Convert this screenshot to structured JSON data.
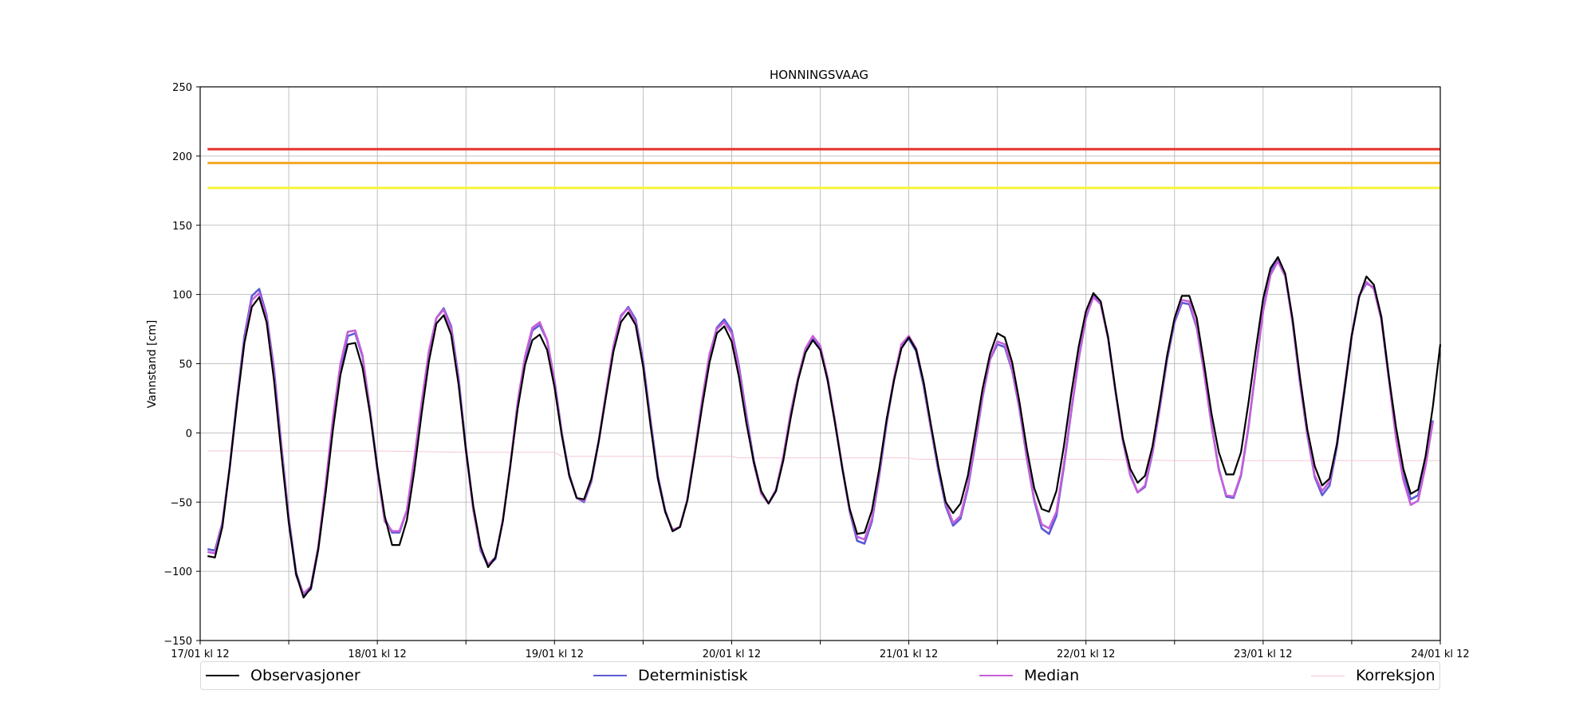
{
  "chart_data": {
    "type": "line",
    "title": "HONNINGSVAAG",
    "xlabel": "",
    "ylabel": "Vannstand [cm]",
    "ylim": [
      -150,
      250
    ],
    "yticks": [
      -150,
      -100,
      -50,
      0,
      50,
      100,
      150,
      200,
      250
    ],
    "xlim_hours": [
      0,
      168
    ],
    "x_tick_labels": [
      "17/01 kl 12",
      "18/01 kl 12",
      "19/01 kl 12",
      "20/01 kl 12",
      "21/01 kl 12",
      "22/01 kl 12",
      "23/01 kl 12",
      "24/01 kl 12"
    ],
    "x_tick_major_hours": [
      0,
      24,
      48,
      72,
      96,
      120,
      144,
      168
    ],
    "x_tick_minor_hours": [
      12,
      36,
      60,
      84,
      108,
      132,
      156
    ],
    "grid": true,
    "legend_position": "bottom",
    "threshold_lines": [
      {
        "value": 205,
        "color": "#e8302a"
      },
      {
        "value": 195,
        "color": "#f5a623"
      },
      {
        "value": 177,
        "color": "#f5f53a"
      }
    ],
    "series": [
      {
        "name": "Observasjoner",
        "color": "#000000",
        "x": [
          1,
          2,
          3,
          4,
          5,
          6,
          7,
          8,
          9,
          10,
          11,
          12,
          13,
          14,
          15,
          16,
          17,
          18,
          19,
          20,
          21,
          22,
          23,
          24,
          25,
          26,
          27,
          28,
          29,
          30,
          31,
          32,
          33,
          34,
          35,
          36,
          37,
          38,
          39,
          40,
          41,
          42,
          43,
          44,
          45,
          46,
          47,
          48,
          49,
          50,
          51,
          52,
          53,
          54,
          55,
          56,
          57,
          58,
          59,
          60,
          61,
          62,
          63,
          64,
          65,
          66,
          67,
          68,
          69,
          70,
          71,
          72,
          73,
          74,
          75,
          76,
          77,
          78,
          79,
          80,
          81,
          82,
          83,
          84,
          85,
          86,
          87,
          88,
          89,
          90,
          91,
          92,
          93,
          94,
          95,
          96,
          97,
          98,
          99,
          100,
          101,
          102,
          103,
          104,
          105,
          106,
          107,
          108,
          109,
          110,
          111,
          112,
          113,
          114,
          115,
          116,
          117,
          118,
          119,
          120,
          121,
          122,
          123,
          124,
          125,
          126,
          127,
          128,
          129,
          130,
          131,
          132,
          133,
          134,
          135,
          136,
          137,
          138,
          139,
          140,
          141,
          142,
          143,
          144,
          145,
          146,
          147,
          148,
          149,
          150,
          151,
          152,
          153,
          154,
          155,
          156,
          157,
          158,
          159,
          160,
          161,
          162,
          163,
          164,
          165,
          166,
          167,
          168
        ],
        "values": [
          -89,
          -90,
          -68,
          -25,
          22,
          65,
          91,
          98,
          80,
          38,
          -15,
          -65,
          -102,
          -119,
          -112,
          -84,
          -43,
          3,
          42,
          64,
          65,
          47,
          14,
          -25,
          -60,
          -81,
          -81,
          -63,
          -28,
          14,
          52,
          79,
          85,
          71,
          35,
          -12,
          -53,
          -82,
          -97,
          -90,
          -64,
          -24,
          17,
          49,
          67,
          71,
          60,
          33,
          -2,
          -31,
          -47,
          -48,
          -33,
          -6,
          27,
          59,
          80,
          87,
          78,
          48,
          6,
          -33,
          -57,
          -71,
          -68,
          -49,
          -16,
          19,
          51,
          72,
          77,
          66,
          40,
          7,
          -21,
          -42,
          -51,
          -42,
          -20,
          11,
          38,
          58,
          67,
          60,
          38,
          7,
          -26,
          -55,
          -73,
          -72,
          -56,
          -26,
          10,
          38,
          61,
          69,
          60,
          37,
          6,
          -24,
          -50,
          -58,
          -51,
          -31,
          0,
          32,
          57,
          72,
          69,
          51,
          22,
          -12,
          -40,
          -55,
          -57,
          -42,
          -10,
          28,
          62,
          88,
          101,
          95,
          69,
          31,
          -4,
          -26,
          -36,
          -31,
          -10,
          22,
          56,
          83,
          99,
          99,
          83,
          50,
          14,
          -14,
          -30,
          -30,
          -14,
          21,
          60,
          97,
          119,
          127,
          115,
          82,
          40,
          2,
          -24,
          -38,
          -33,
          -8,
          30,
          70,
          98,
          113,
          107,
          84,
          42,
          4,
          -26,
          -44,
          -41,
          -17,
          19,
          64
        ]
      },
      {
        "name": "Deterministisk",
        "color": "#5b5bd6",
        "x": [
          1,
          2,
          3,
          4,
          5,
          6,
          7,
          8,
          9,
          10,
          11,
          12,
          13,
          14,
          15,
          16,
          17,
          18,
          19,
          20,
          21,
          22,
          23,
          24,
          25,
          26,
          27,
          28,
          29,
          30,
          31,
          32,
          33,
          34,
          35,
          36,
          37,
          38,
          39,
          40,
          41,
          42,
          43,
          44,
          45,
          46,
          47,
          48,
          49,
          50,
          51,
          52,
          53,
          54,
          55,
          56,
          57,
          58,
          59,
          60,
          61,
          62,
          63,
          64,
          65,
          66,
          67,
          68,
          69,
          70,
          71,
          72,
          73,
          74,
          75,
          76,
          77,
          78,
          79,
          80,
          81,
          82,
          83,
          84,
          85,
          86,
          87,
          88,
          89,
          90,
          91,
          92,
          93,
          94,
          95,
          96,
          97,
          98,
          99,
          100,
          101,
          102,
          103,
          104,
          105,
          106,
          107,
          108,
          109,
          110,
          111,
          112,
          113,
          114,
          115,
          116,
          117,
          118,
          119,
          120,
          121,
          122,
          123,
          124,
          125,
          126,
          127,
          128,
          129,
          130,
          131,
          132,
          133,
          134,
          135,
          136,
          137,
          138,
          139,
          140,
          141,
          142,
          143,
          144,
          145,
          146,
          147,
          148,
          149,
          150,
          151,
          152,
          153,
          154,
          155,
          156,
          157,
          158,
          159,
          160,
          161,
          162,
          163,
          164,
          165,
          166,
          167
        ],
        "values": [
          -84,
          -85,
          -65,
          -25,
          25,
          70,
          99,
          104,
          85,
          46,
          -9,
          -61,
          -101,
          -117,
          -113,
          -84,
          -40,
          8,
          47,
          70,
          72,
          55,
          17,
          -25,
          -62,
          -72,
          -72,
          -56,
          -20,
          21,
          59,
          83,
          90,
          77,
          40,
          -11,
          -55,
          -85,
          -96,
          -91,
          -63,
          -24,
          20,
          53,
          74,
          78,
          67,
          38,
          0,
          -30,
          -47,
          -50,
          -35,
          -6,
          29,
          62,
          84,
          91,
          82,
          52,
          10,
          -31,
          -56,
          -71,
          -68,
          -48,
          -14,
          23,
          56,
          76,
          82,
          74,
          48,
          13,
          -20,
          -43,
          -51,
          -42,
          -19,
          14,
          39,
          60,
          68,
          62,
          38,
          8,
          -26,
          -57,
          -78,
          -80,
          -64,
          -31,
          7,
          39,
          63,
          68,
          59,
          34,
          3,
          -27,
          -53,
          -67,
          -62,
          -40,
          -8,
          26,
          53,
          64,
          62,
          45,
          17,
          -19,
          -49,
          -69,
          -73,
          -60,
          -25,
          15,
          53,
          83,
          99,
          93,
          69,
          30,
          -6,
          -30,
          -43,
          -39,
          -15,
          18,
          53,
          80,
          94,
          93,
          76,
          44,
          6,
          -26,
          -46,
          -47,
          -31,
          3,
          46,
          89,
          116,
          126,
          114,
          79,
          36,
          -2,
          -32,
          -45,
          -38,
          -10,
          30,
          70,
          99,
          108,
          105,
          84,
          42,
          0,
          -31,
          -48,
          -45,
          -22,
          9
        ]
      },
      {
        "name": "Median",
        "color": "#c55fd9",
        "x": [
          1,
          2,
          3,
          4,
          5,
          6,
          7,
          8,
          9,
          10,
          11,
          12,
          13,
          14,
          15,
          16,
          17,
          18,
          19,
          20,
          21,
          22,
          23,
          24,
          25,
          26,
          27,
          28,
          29,
          30,
          31,
          32,
          33,
          34,
          35,
          36,
          37,
          38,
          39,
          40,
          41,
          42,
          43,
          44,
          45,
          46,
          47,
          48,
          49,
          50,
          51,
          52,
          53,
          54,
          55,
          56,
          57,
          58,
          59,
          60,
          61,
          62,
          63,
          64,
          65,
          66,
          67,
          68,
          69,
          70,
          71,
          72,
          73,
          74,
          75,
          76,
          77,
          78,
          79,
          80,
          81,
          82,
          83,
          84,
          85,
          86,
          87,
          88,
          89,
          90,
          91,
          92,
          93,
          94,
          95,
          96,
          97,
          98,
          99,
          100,
          101,
          102,
          103,
          104,
          105,
          106,
          107,
          108,
          109,
          110,
          111,
          112,
          113,
          114,
          115,
          116,
          117,
          118,
          119,
          120,
          121,
          122,
          123,
          124,
          125,
          126,
          127,
          128,
          129,
          130,
          131,
          132,
          133,
          134,
          135,
          136,
          137,
          138,
          139,
          140,
          141,
          142,
          143,
          144,
          145,
          146,
          147,
          148,
          149,
          150,
          151,
          152,
          153,
          154,
          155,
          156,
          157,
          158,
          159,
          160,
          161,
          162,
          163,
          164,
          165,
          166,
          167
        ],
        "values": [
          -86,
          -87,
          -66,
          -26,
          23,
          67,
          96,
          101,
          83,
          43,
          -11,
          -63,
          -103,
          -116,
          -111,
          -82,
          -37,
          11,
          50,
          73,
          74,
          56,
          16,
          -27,
          -64,
          -71,
          -71,
          -56,
          -19,
          22,
          59,
          83,
          89,
          75,
          38,
          -13,
          -56,
          -84,
          -95,
          -90,
          -63,
          -24,
          22,
          55,
          76,
          80,
          67,
          37,
          -1,
          -31,
          -47,
          -49,
          -34,
          -5,
          30,
          63,
          85,
          90,
          80,
          50,
          8,
          -33,
          -57,
          -70,
          -68,
          -48,
          -14,
          24,
          57,
          75,
          80,
          72,
          46,
          11,
          -22,
          -44,
          -51,
          -41,
          -17,
          15,
          40,
          61,
          70,
          63,
          40,
          9,
          -25,
          -56,
          -75,
          -77,
          -62,
          -29,
          9,
          40,
          64,
          70,
          61,
          36,
          4,
          -25,
          -51,
          -65,
          -60,
          -38,
          -6,
          27,
          53,
          66,
          64,
          46,
          18,
          -18,
          -48,
          -66,
          -69,
          -57,
          -23,
          16,
          54,
          84,
          98,
          93,
          68,
          30,
          -6,
          -31,
          -43,
          -38,
          -14,
          19,
          55,
          82,
          96,
          95,
          77,
          44,
          6,
          -27,
          -45,
          -46,
          -30,
          4,
          46,
          88,
          114,
          124,
          113,
          80,
          37,
          -1,
          -31,
          -42,
          -35,
          -8,
          32,
          71,
          99,
          109,
          104,
          82,
          40,
          -4,
          -34,
          -52,
          -49,
          -24,
          8
        ]
      },
      {
        "name": "Korreksjon",
        "color": "#f5c6d4",
        "x": [
          1,
          12,
          24,
          36,
          48,
          49,
          60,
          72,
          73,
          84,
          96,
          97,
          108,
          120,
          132,
          144,
          156,
          168
        ],
        "values": [
          -13,
          -13,
          -13,
          -14,
          -14,
          -17,
          -17,
          -17,
          -18,
          -18,
          -18,
          -19,
          -19,
          -19,
          -20,
          -20,
          -20,
          -20
        ]
      }
    ]
  }
}
